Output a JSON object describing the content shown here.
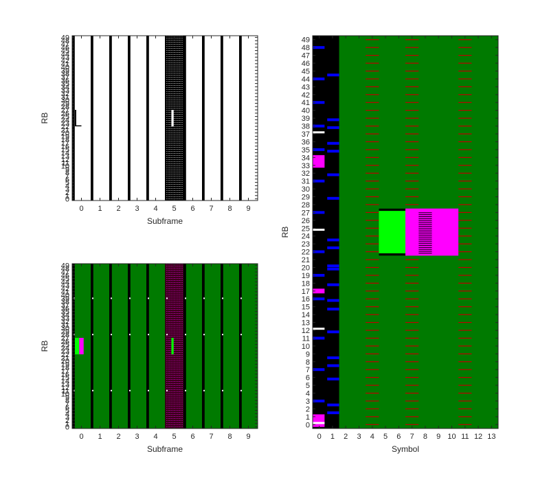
{
  "colors": {
    "white": "#ffffff",
    "black": "#000000",
    "dark_green": "#007a00",
    "bright_green": "#00ff00",
    "magenta": "#ff00ff",
    "red": "#c00000",
    "blue": "#0000ff",
    "dark_red": "#3a0018",
    "frame": "#262626"
  },
  "chart_data": [
    {
      "id": "top-left",
      "type": "heatmap",
      "xlabel": "Subframe",
      "ylabel": "RB",
      "xticks": [
        "0",
        "1",
        "2",
        "3",
        "4",
        "5",
        "6",
        "7",
        "8",
        "9"
      ],
      "yticks": [
        "0",
        "1",
        "2",
        "3",
        "4",
        "5",
        "6",
        "7",
        "8",
        "9",
        "10",
        "11",
        "12",
        "13",
        "14",
        "15",
        "16",
        "17",
        "18",
        "19",
        "20",
        "21",
        "22",
        "23",
        "24",
        "25",
        "26",
        "27",
        "28",
        "29",
        "30",
        "31",
        "32",
        "33",
        "34",
        "35",
        "36",
        "37",
        "38",
        "39",
        "40",
        "41",
        "42",
        "43",
        "44",
        "45",
        "46",
        "47",
        "48",
        "49"
      ],
      "xlim": [
        -0.5,
        9.5
      ],
      "ylim": [
        -0.5,
        49.5
      ],
      "background": "white",
      "columns": [
        {
          "x": -0.5,
          "w": 0.14,
          "fill": "black"
        },
        {
          "x": 0.5,
          "w": 0.14,
          "fill": "black"
        },
        {
          "x": 1.5,
          "w": 0.14,
          "fill": "black"
        },
        {
          "x": 2.5,
          "w": 0.14,
          "fill": "black"
        },
        {
          "x": 3.5,
          "w": 0.14,
          "fill": "black"
        },
        {
          "x": 4.5,
          "w": 1.0,
          "fill": "black"
        },
        {
          "x": 5.5,
          "w": 0.14,
          "fill": "black"
        },
        {
          "x": 6.5,
          "w": 0.14,
          "fill": "black"
        },
        {
          "x": 7.5,
          "w": 0.14,
          "fill": "black"
        },
        {
          "x": 8.5,
          "w": 0.14,
          "fill": "black"
        }
      ],
      "blocks": [
        {
          "x0": -0.35,
          "x1": -0.28,
          "y0": 22,
          "y1": 27,
          "fill": "black"
        },
        {
          "x0": -0.28,
          "x1": 0.0,
          "y0": 22,
          "y1": 22.3,
          "fill": "black"
        },
        {
          "x0": 4.85,
          "x1": 4.97,
          "y0": 22,
          "y1": 27,
          "fill": "white"
        }
      ],
      "grid_overlay": [
        {
          "x0": 4.6,
          "x1": 5.5,
          "color": "white"
        }
      ]
    },
    {
      "id": "bottom-left",
      "type": "heatmap",
      "xlabel": "Subframe",
      "ylabel": "RB",
      "xticks": [
        "0",
        "1",
        "2",
        "3",
        "4",
        "5",
        "6",
        "7",
        "8",
        "9"
      ],
      "yticks": [
        "0",
        "1",
        "2",
        "3",
        "4",
        "5",
        "6",
        "7",
        "8",
        "9",
        "10",
        "11",
        "12",
        "13",
        "14",
        "15",
        "16",
        "17",
        "18",
        "19",
        "20",
        "21",
        "22",
        "23",
        "24",
        "25",
        "26",
        "27",
        "28",
        "29",
        "30",
        "31",
        "32",
        "33",
        "34",
        "35",
        "36",
        "37",
        "38",
        "39",
        "40",
        "41",
        "42",
        "43",
        "44",
        "45",
        "46",
        "47",
        "48",
        "49"
      ],
      "xlim": [
        -0.5,
        9.5
      ],
      "ylim": [
        -0.5,
        49.5
      ],
      "background": "dark_green",
      "columns": [
        {
          "x": -0.5,
          "w": 0.14,
          "fill": "black"
        },
        {
          "x": 0.5,
          "w": 0.14,
          "fill": "black"
        },
        {
          "x": 1.5,
          "w": 0.14,
          "fill": "black"
        },
        {
          "x": 2.5,
          "w": 0.14,
          "fill": "black"
        },
        {
          "x": 3.5,
          "w": 0.14,
          "fill": "black"
        },
        {
          "x": 4.5,
          "w": 1.0,
          "fill": "dark_red"
        },
        {
          "x": 5.5,
          "w": 0.14,
          "fill": "black"
        },
        {
          "x": 6.5,
          "w": 0.14,
          "fill": "black"
        },
        {
          "x": 7.5,
          "w": 0.14,
          "fill": "black"
        },
        {
          "x": 8.5,
          "w": 0.14,
          "fill": "black"
        }
      ],
      "blocks": [
        {
          "x0": -0.35,
          "x1": -0.12,
          "y0": 22,
          "y1": 27,
          "fill": "bright_green"
        },
        {
          "x0": -0.12,
          "x1": 0.12,
          "y0": 22,
          "y1": 27,
          "fill": "magenta"
        },
        {
          "x0": 4.85,
          "x1": 4.97,
          "y0": 22,
          "y1": 27,
          "fill": "bright_green"
        }
      ],
      "grid_overlay": [
        {
          "x0": 4.6,
          "x1": 5.5,
          "color": "magenta"
        }
      ]
    },
    {
      "id": "right",
      "type": "heatmap",
      "xlabel": "Symbol",
      "ylabel": "RB",
      "xticks": [
        "0",
        "1",
        "2",
        "3",
        "4",
        "5",
        "6",
        "7",
        "8",
        "9",
        "10",
        "11",
        "12",
        "13"
      ],
      "yticks": [
        "0",
        "1",
        "2",
        "3",
        "4",
        "5",
        "6",
        "7",
        "8",
        "9",
        "10",
        "11",
        "12",
        "13",
        "14",
        "15",
        "16",
        "17",
        "18",
        "19",
        "20",
        "21",
        "22",
        "23",
        "24",
        "25",
        "26",
        "27",
        "28",
        "29",
        "30",
        "31",
        "32",
        "33",
        "34",
        "35",
        "36",
        "37",
        "38",
        "39",
        "40",
        "41",
        "42",
        "43",
        "44",
        "45",
        "46",
        "47",
        "48",
        "49"
      ],
      "xlim": [
        -0.5,
        13.5
      ],
      "ylim": [
        -0.5,
        49.5
      ],
      "background": "dark_green",
      "columns": [
        {
          "x": -0.5,
          "w": 2.0,
          "fill": "black"
        }
      ],
      "blocks": [
        {
          "x0": 4.5,
          "x1": 6.5,
          "y0": 21.5,
          "y1": 27.5,
          "fill": "bright_green"
        },
        {
          "x0": 4.5,
          "x1": 6.5,
          "y0": 21.5,
          "y1": 21.8,
          "fill": "black"
        },
        {
          "x0": 4.5,
          "x1": 6.5,
          "y0": 27.2,
          "y1": 27.5,
          "fill": "black"
        },
        {
          "x0": 6.5,
          "x1": 10.5,
          "y0": 21.5,
          "y1": 27.5,
          "fill": "magenta"
        },
        {
          "x0": -0.5,
          "x1": 0.4,
          "y0": -0.3,
          "y1": 1.3,
          "fill": "magenta"
        },
        {
          "x0": -0.5,
          "x1": 0.4,
          "y0": 16.7,
          "y1": 17.3,
          "fill": "magenta"
        },
        {
          "x0": -0.5,
          "x1": 0.4,
          "y0": 32.7,
          "y1": 34.3,
          "fill": "magenta"
        }
      ],
      "red_stripes": [
        {
          "x0": -0.5,
          "x1": 0.4
        },
        {
          "x0": 3.5,
          "x1": 4.5
        },
        {
          "x0": 6.5,
          "x1": 7.5
        },
        {
          "x0": 10.5,
          "x1": 11.5
        }
      ],
      "black_stripe_region": {
        "x0": 7.5,
        "x1": 8.5,
        "y0": 21.8,
        "y1": 27.2
      },
      "white_marks": [
        0.2,
        12.2,
        24.8,
        37.2
      ],
      "blue_marks_col0": [
        3,
        7,
        11,
        16,
        19,
        22,
        27,
        31,
        35,
        38,
        41,
        44,
        48
      ],
      "blue_marks_col1": [
        1.5,
        2.5,
        5.8,
        7.5,
        8.5,
        11.8,
        14.7,
        15.8,
        17.8,
        19.8,
        20.2,
        22.5,
        23.5,
        28.8,
        31.8,
        34.8,
        35.8,
        37.8,
        38.8,
        44.5
      ]
    }
  ]
}
